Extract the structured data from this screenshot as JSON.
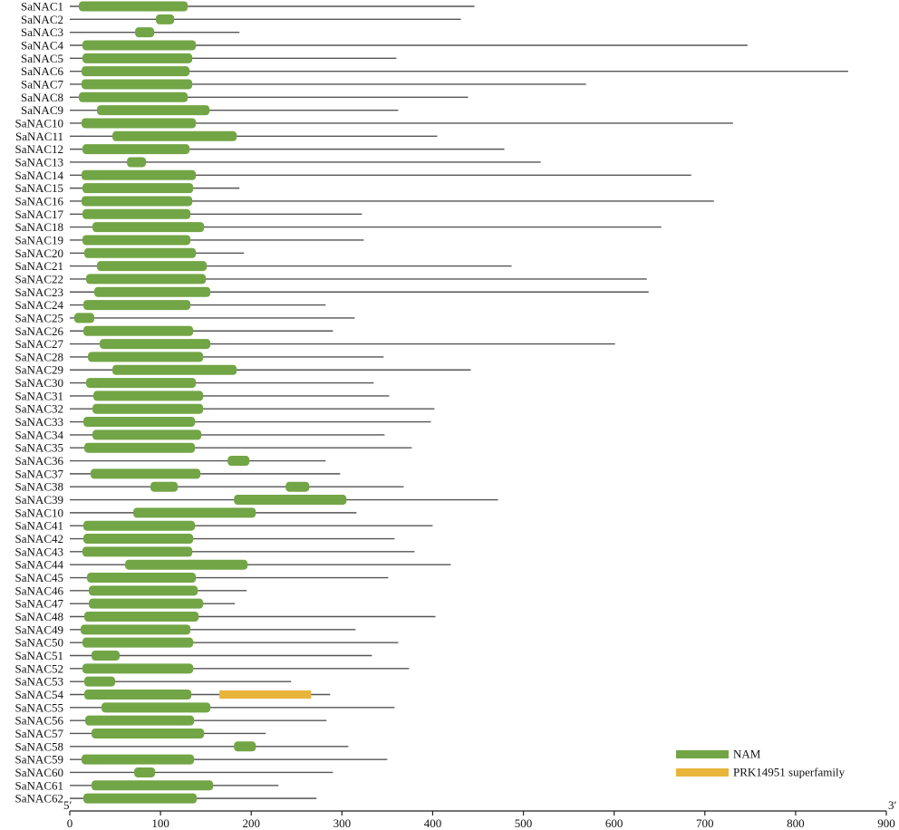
{
  "chart_data": {
    "type": "domain-map",
    "xlim": [
      0,
      900
    ],
    "x_ticks": [
      0,
      100,
      200,
      300,
      400,
      500,
      600,
      700,
      800,
      900
    ],
    "end_labels": {
      "left": "5′",
      "right": "3′"
    },
    "colors": {
      "NAM": "#72a545",
      "PRK14951 superfamily": "#e8b43a",
      "line": "#555555"
    },
    "legend": [
      {
        "name": "NAM",
        "color": "#72a545"
      },
      {
        "name": "PRK14951 superfamily",
        "color": "#e8b43a"
      }
    ],
    "proteins": [
      {
        "name": "SaNAC1",
        "length": 446,
        "domains": [
          {
            "type": "NAM",
            "start": 10,
            "end": 130
          }
        ]
      },
      {
        "name": "SaNAC2",
        "length": 431,
        "domains": [
          {
            "type": "NAM",
            "start": 95,
            "end": 115
          }
        ]
      },
      {
        "name": "SaNAC3",
        "length": 187,
        "domains": [
          {
            "type": "NAM",
            "start": 72,
            "end": 93
          }
        ]
      },
      {
        "name": "SaNAC4",
        "length": 747,
        "domains": [
          {
            "type": "NAM",
            "start": 14,
            "end": 139
          }
        ]
      },
      {
        "name": "SaNAC5",
        "length": 360,
        "domains": [
          {
            "type": "NAM",
            "start": 14,
            "end": 135
          }
        ]
      },
      {
        "name": "SaNAC6",
        "length": 858,
        "domains": [
          {
            "type": "NAM",
            "start": 13,
            "end": 132
          }
        ]
      },
      {
        "name": "SaNAC7",
        "length": 569,
        "domains": [
          {
            "type": "NAM",
            "start": 13,
            "end": 135
          }
        ]
      },
      {
        "name": "SaNAC8",
        "length": 439,
        "domains": [
          {
            "type": "NAM",
            "start": 10,
            "end": 130
          }
        ]
      },
      {
        "name": "SaNAC9",
        "length": 362,
        "domains": [
          {
            "type": "NAM",
            "start": 30,
            "end": 154
          }
        ]
      },
      {
        "name": "SaNAC10",
        "length": 731,
        "domains": [
          {
            "type": "NAM",
            "start": 13,
            "end": 139
          }
        ]
      },
      {
        "name": "SaNAC11",
        "length": 405,
        "domains": [
          {
            "type": "NAM",
            "start": 47,
            "end": 184
          }
        ]
      },
      {
        "name": "SaNAC12",
        "length": 479,
        "domains": [
          {
            "type": "NAM",
            "start": 14,
            "end": 132
          }
        ]
      },
      {
        "name": "SaNAC13",
        "length": 519,
        "domains": [
          {
            "type": "NAM",
            "start": 63,
            "end": 84
          }
        ]
      },
      {
        "name": "SaNAC14",
        "length": 685,
        "domains": [
          {
            "type": "NAM",
            "start": 13,
            "end": 139
          }
        ]
      },
      {
        "name": "SaNAC15",
        "length": 187,
        "domains": [
          {
            "type": "NAM",
            "start": 14,
            "end": 136
          }
        ]
      },
      {
        "name": "SaNAC16",
        "length": 710,
        "domains": [
          {
            "type": "NAM",
            "start": 13,
            "end": 135
          }
        ]
      },
      {
        "name": "SaNAC17",
        "length": 322,
        "domains": [
          {
            "type": "NAM",
            "start": 14,
            "end": 133
          }
        ]
      },
      {
        "name": "SaNAC18",
        "length": 652,
        "domains": [
          {
            "type": "NAM",
            "start": 25,
            "end": 148
          }
        ]
      },
      {
        "name": "SaNAC19",
        "length": 324,
        "domains": [
          {
            "type": "NAM",
            "start": 14,
            "end": 133
          }
        ]
      },
      {
        "name": "SaNAC20",
        "length": 192,
        "domains": [
          {
            "type": "NAM",
            "start": 16,
            "end": 139
          }
        ]
      },
      {
        "name": "SaNAC21",
        "length": 487,
        "domains": [
          {
            "type": "NAM",
            "start": 30,
            "end": 151
          }
        ]
      },
      {
        "name": "SaNAC22",
        "length": 636,
        "domains": [
          {
            "type": "NAM",
            "start": 18,
            "end": 150
          }
        ]
      },
      {
        "name": "SaNAC23",
        "length": 638,
        "domains": [
          {
            "type": "NAM",
            "start": 27,
            "end": 155
          }
        ]
      },
      {
        "name": "SaNAC24",
        "length": 282,
        "domains": [
          {
            "type": "NAM",
            "start": 15,
            "end": 133
          }
        ]
      },
      {
        "name": "SaNAC25",
        "length": 314,
        "domains": [
          {
            "type": "NAM",
            "start": 5,
            "end": 27
          }
        ]
      },
      {
        "name": "SaNAC26",
        "length": 290,
        "domains": [
          {
            "type": "NAM",
            "start": 15,
            "end": 136
          }
        ]
      },
      {
        "name": "SaNAC27",
        "length": 601,
        "domains": [
          {
            "type": "NAM",
            "start": 33,
            "end": 155
          }
        ]
      },
      {
        "name": "SaNAC28",
        "length": 346,
        "domains": [
          {
            "type": "NAM",
            "start": 20,
            "end": 147
          }
        ]
      },
      {
        "name": "SaNAC29",
        "length": 442,
        "domains": [
          {
            "type": "NAM",
            "start": 47,
            "end": 184
          }
        ]
      },
      {
        "name": "SaNAC30",
        "length": 335,
        "domains": [
          {
            "type": "NAM",
            "start": 18,
            "end": 139
          }
        ]
      },
      {
        "name": "SaNAC31",
        "length": 352,
        "domains": [
          {
            "type": "NAM",
            "start": 26,
            "end": 147
          }
        ]
      },
      {
        "name": "SaNAC32",
        "length": 402,
        "domains": [
          {
            "type": "NAM",
            "start": 25,
            "end": 147
          }
        ]
      },
      {
        "name": "SaNAC33",
        "length": 398,
        "domains": [
          {
            "type": "NAM",
            "start": 15,
            "end": 138
          }
        ]
      },
      {
        "name": "SaNAC34",
        "length": 347,
        "domains": [
          {
            "type": "NAM",
            "start": 25,
            "end": 145
          }
        ]
      },
      {
        "name": "SaNAC35",
        "length": 377,
        "domains": [
          {
            "type": "NAM",
            "start": 16,
            "end": 138
          }
        ]
      },
      {
        "name": "SaNAC36",
        "length": 282,
        "domains": [
          {
            "type": "NAM",
            "start": 174,
            "end": 198
          }
        ]
      },
      {
        "name": "SaNAC37",
        "length": 298,
        "domains": [
          {
            "type": "NAM",
            "start": 23,
            "end": 144
          }
        ]
      },
      {
        "name": "SaNAC38",
        "length": 368,
        "domains": [
          {
            "type": "NAM",
            "start": 89,
            "end": 119
          },
          {
            "type": "NAM",
            "start": 238,
            "end": 264
          }
        ]
      },
      {
        "name": "SaNAC39",
        "length": 472,
        "domains": [
          {
            "type": "NAM",
            "start": 181,
            "end": 305
          }
        ]
      },
      {
        "name": "SaNAC10",
        "length": 316,
        "domains": [
          {
            "type": "NAM",
            "start": 70,
            "end": 205
          }
        ]
      },
      {
        "name": "SaNAC41",
        "length": 400,
        "domains": [
          {
            "type": "NAM",
            "start": 15,
            "end": 138
          }
        ]
      },
      {
        "name": "SaNAC42",
        "length": 358,
        "domains": [
          {
            "type": "NAM",
            "start": 15,
            "end": 136
          }
        ]
      },
      {
        "name": "SaNAC43",
        "length": 380,
        "domains": [
          {
            "type": "NAM",
            "start": 14,
            "end": 135
          }
        ]
      },
      {
        "name": "SaNAC44",
        "length": 420,
        "domains": [
          {
            "type": "NAM",
            "start": 61,
            "end": 196
          }
        ]
      },
      {
        "name": "SaNAC45",
        "length": 351,
        "domains": [
          {
            "type": "NAM",
            "start": 19,
            "end": 139
          }
        ]
      },
      {
        "name": "SaNAC46",
        "length": 195,
        "domains": [
          {
            "type": "NAM",
            "start": 21,
            "end": 141
          }
        ]
      },
      {
        "name": "SaNAC47",
        "length": 182,
        "domains": [
          {
            "type": "NAM",
            "start": 21,
            "end": 147
          }
        ]
      },
      {
        "name": "SaNAC48",
        "length": 403,
        "domains": [
          {
            "type": "NAM",
            "start": 16,
            "end": 142
          }
        ]
      },
      {
        "name": "SaNAC49",
        "length": 315,
        "domains": [
          {
            "type": "NAM",
            "start": 12,
            "end": 133
          }
        ]
      },
      {
        "name": "SaNAC50",
        "length": 362,
        "domains": [
          {
            "type": "NAM",
            "start": 14,
            "end": 136
          }
        ]
      },
      {
        "name": "SaNAC51",
        "length": 333,
        "domains": [
          {
            "type": "NAM",
            "start": 24,
            "end": 55
          }
        ]
      },
      {
        "name": "SaNAC52",
        "length": 374,
        "domains": [
          {
            "type": "NAM",
            "start": 14,
            "end": 136
          }
        ]
      },
      {
        "name": "SaNAC53",
        "length": 244,
        "domains": [
          {
            "type": "NAM",
            "start": 16,
            "end": 50
          }
        ]
      },
      {
        "name": "SaNAC54",
        "length": 287,
        "domains": [
          {
            "type": "NAM",
            "start": 16,
            "end": 134
          },
          {
            "type": "PRK14951 superfamily",
            "start": 165,
            "end": 266
          }
        ]
      },
      {
        "name": "SaNAC55",
        "length": 358,
        "domains": [
          {
            "type": "NAM",
            "start": 35,
            "end": 155
          }
        ]
      },
      {
        "name": "SaNAC56",
        "length": 283,
        "domains": [
          {
            "type": "NAM",
            "start": 17,
            "end": 137
          }
        ]
      },
      {
        "name": "SaNAC57",
        "length": 216,
        "domains": [
          {
            "type": "NAM",
            "start": 24,
            "end": 148
          }
        ]
      },
      {
        "name": "SaNAC58",
        "length": 307,
        "domains": [
          {
            "type": "NAM",
            "start": 181,
            "end": 205
          }
        ]
      },
      {
        "name": "SaNAC59",
        "length": 350,
        "domains": [
          {
            "type": "NAM",
            "start": 13,
            "end": 137
          }
        ]
      },
      {
        "name": "SaNAC60",
        "length": 290,
        "domains": [
          {
            "type": "NAM",
            "start": 71,
            "end": 94
          }
        ]
      },
      {
        "name": "SaNAC61",
        "length": 230,
        "domains": [
          {
            "type": "NAM",
            "start": 24,
            "end": 158
          }
        ]
      },
      {
        "name": "SaNAC62",
        "length": 272,
        "domains": [
          {
            "type": "NAM",
            "start": 15,
            "end": 140
          }
        ]
      }
    ]
  }
}
